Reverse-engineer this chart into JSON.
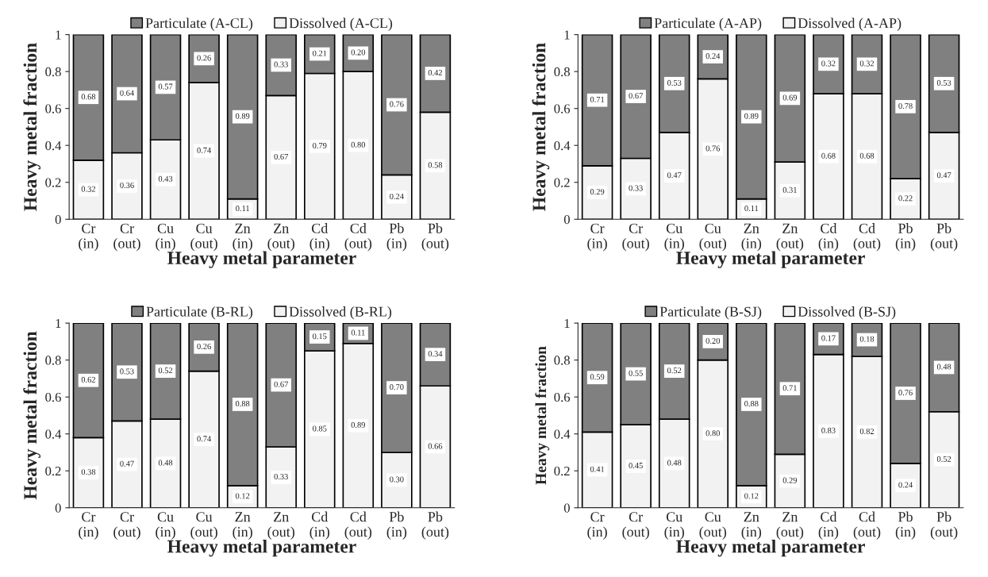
{
  "chart_data": [
    {
      "type": "bar",
      "stacked": true,
      "ylabel": "Heavy metal fraction",
      "xlabel": "Heavy metal parameter",
      "categories": [
        "Cr\n(in)",
        "Cr\n(out)",
        "Cu\n(in)",
        "Cu\n(out)",
        "Zn\n(in)",
        "Zn\n(out)",
        "Cd\n(in)",
        "Cd\n(out)",
        "Pb\n(in)",
        "Pb\n(out)"
      ],
      "ylim": [
        0,
        1
      ],
      "yticks": [
        0,
        0.2,
        0.4,
        0.6,
        0.8,
        1
      ],
      "legend": "top",
      "grid": false,
      "series": [
        {
          "name": "Dissolved (A-CL)",
          "color": "#f2f2f2",
          "values": [
            0.32,
            0.36,
            0.43,
            0.74,
            0.11,
            0.67,
            0.79,
            0.8,
            0.24,
            0.58
          ],
          "value_labels": [
            "0.32",
            "0.36",
            "0.43",
            "0.74",
            "0.11",
            "0.67",
            "0.79",
            "0.80",
            "0.24",
            "0.58"
          ]
        },
        {
          "name": "Particulate (A-CL)",
          "color": "#808080",
          "values": [
            0.68,
            0.64,
            0.57,
            0.26,
            0.89,
            0.33,
            0.21,
            0.2,
            0.76,
            0.42
          ],
          "value_labels": [
            "0.68",
            "0.64",
            "0.57",
            "0.26",
            "0.89",
            "0.33",
            "0.21",
            "0.20",
            "0.76",
            "0.42"
          ]
        }
      ]
    },
    {
      "type": "bar",
      "stacked": true,
      "ylabel": "Heavy metal fraction",
      "xlabel": "Heavy metal parameter",
      "categories": [
        "Cr\n(in)",
        "Cr\n(out)",
        "Cu\n(in)",
        "Cu\n(out)",
        "Zn\n(in)",
        "Zn\n(out)",
        "Cd\n(in)",
        "Cd\n(out)",
        "Pb\n(in)",
        "Pb\n(out)"
      ],
      "ylim": [
        0,
        1
      ],
      "yticks": [
        0,
        0.2,
        0.4,
        0.6,
        0.8,
        1
      ],
      "legend": "top",
      "grid": false,
      "series": [
        {
          "name": "Dissolved (A-AP)",
          "color": "#f2f2f2",
          "values": [
            0.29,
            0.33,
            0.47,
            0.76,
            0.11,
            0.31,
            0.68,
            0.68,
            0.22,
            0.47
          ],
          "value_labels": [
            "0.29",
            "0.33",
            "0.47",
            "0.76",
            "0.11",
            "0.31",
            "0.68",
            "0.68",
            "0.22",
            "0.47"
          ]
        },
        {
          "name": "Particulate (A-AP)",
          "color": "#808080",
          "values": [
            0.71,
            0.67,
            0.53,
            0.24,
            0.89,
            0.69,
            0.32,
            0.32,
            0.78,
            0.53
          ],
          "value_labels": [
            "0.71",
            "0.67",
            "0.53",
            "0.24",
            "0.89",
            "0.69",
            "0.32",
            "0.32",
            "0.78",
            "0.53"
          ]
        }
      ]
    },
    {
      "type": "bar",
      "stacked": true,
      "ylabel": "Heavy metal fraction",
      "xlabel": "Heavy metal parameter",
      "categories": [
        "Cr\n(in)",
        "Cr\n(out)",
        "Cu\n(in)",
        "Cu\n(out)",
        "Zn\n(in)",
        "Zn\n(out)",
        "Cd\n(in)",
        "Cd\n(out)",
        "Pb\n(in)",
        "Pb\n(out)"
      ],
      "ylim": [
        0,
        1
      ],
      "yticks": [
        0,
        0.2,
        0.4,
        0.6,
        0.8,
        1
      ],
      "legend": "top",
      "grid": false,
      "series": [
        {
          "name": "Dissolved (B-RL)",
          "color": "#f2f2f2",
          "values": [
            0.38,
            0.47,
            0.48,
            0.74,
            0.12,
            0.33,
            0.85,
            0.89,
            0.3,
            0.66
          ],
          "value_labels": [
            "0.38",
            "0.47",
            "0.48",
            "0.74",
            "0.12",
            "0.33",
            "0.85",
            "0.89",
            "0.30",
            "0.66"
          ]
        },
        {
          "name": "Particulate (B-RL)",
          "color": "#808080",
          "values": [
            0.62,
            0.53,
            0.52,
            0.26,
            0.88,
            0.67,
            0.15,
            0.11,
            0.7,
            0.34
          ],
          "value_labels": [
            "0.62",
            "0.53",
            "0.52",
            "0.26",
            "0.88",
            "0.67",
            "0.15",
            "0.11",
            "0.70",
            "0.34"
          ]
        }
      ]
    },
    {
      "type": "bar",
      "stacked": true,
      "ylabel": "Heavy metal fraction",
      "xlabel": "Heavy metal parameter",
      "categories": [
        "Cr\n(in)",
        "Cr\n(out)",
        "Cu\n(in)",
        "Cu\n(out)",
        "Zn\n(in)",
        "Zn\n(out)",
        "Cd\n(in)",
        "Cd\n(out)",
        "Pb\n(in)",
        "Pb\n(out)"
      ],
      "ylim": [
        0,
        1
      ],
      "yticks": [
        0,
        0.2,
        0.4,
        0.6,
        0.8,
        1
      ],
      "legend": "top",
      "grid": false,
      "series": [
        {
          "name": "Dissolved (B-SJ)",
          "color": "#f2f2f2",
          "values": [
            0.41,
            0.45,
            0.48,
            0.8,
            0.12,
            0.29,
            0.83,
            0.82,
            0.24,
            0.52
          ],
          "value_labels": [
            "0.41",
            "0.45",
            "0.48",
            "0.80",
            "0.12",
            "0.29",
            "0.83",
            "0.82",
            "0.24",
            "0.52"
          ]
        },
        {
          "name": "Particulate (B-SJ)",
          "color": "#808080",
          "values": [
            0.59,
            0.55,
            0.52,
            0.2,
            0.88,
            0.71,
            0.17,
            0.18,
            0.76,
            0.48
          ],
          "value_labels": [
            "0.59",
            "0.55",
            "0.52",
            "0.20",
            "0.88",
            "0.71",
            "0.17",
            "0.18",
            "0.76",
            "0.48"
          ]
        }
      ]
    }
  ]
}
